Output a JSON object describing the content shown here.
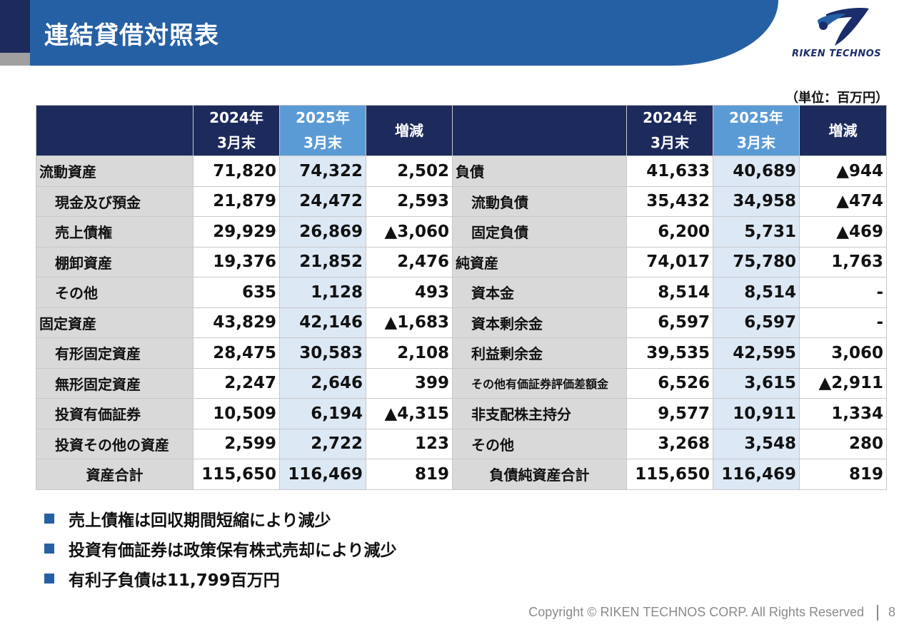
{
  "header": {
    "title": "連結貸借対照表",
    "logo_text": "RIKEN TECHNOS"
  },
  "unit_label": "（単位：百万円）",
  "table": {
    "headers": {
      "left_prev": [
        "2024年",
        "3月末"
      ],
      "left_cur": [
        "2025年",
        "3月末"
      ],
      "left_change": "増減",
      "right_prev": [
        "2024年",
        "3月末"
      ],
      "right_cur": [
        "2025年",
        "3月末"
      ],
      "right_change": "増減"
    },
    "rows": [
      {
        "l_label": "流動資産",
        "l_prev": "71,820",
        "l_cur": "74,322",
        "l_chg": "2,502",
        "r_label": "負債",
        "r_prev": "41,633",
        "r_cur": "40,689",
        "r_chg": "▲944"
      },
      {
        "l_label": "現金及び預金",
        "l_prev": "21,879",
        "l_cur": "24,472",
        "l_chg": "2,593",
        "r_label": "流動負債",
        "r_prev": "35,432",
        "r_cur": "34,958",
        "r_chg": "▲474"
      },
      {
        "l_label": "売上債権",
        "l_prev": "29,929",
        "l_cur": "26,869",
        "l_chg": "▲3,060",
        "r_label": "固定負債",
        "r_prev": "6,200",
        "r_cur": "5,731",
        "r_chg": "▲469"
      },
      {
        "l_label": "棚卸資産",
        "l_prev": "19,376",
        "l_cur": "21,852",
        "l_chg": "2,476",
        "r_label": "純資産",
        "r_prev": "74,017",
        "r_cur": "75,780",
        "r_chg": "1,763"
      },
      {
        "l_label": "その他",
        "l_prev": "635",
        "l_cur": "1,128",
        "l_chg": "493",
        "r_label": "資本金",
        "r_prev": "8,514",
        "r_cur": "8,514",
        "r_chg": "-"
      },
      {
        "l_label": "固定資産",
        "l_prev": "43,829",
        "l_cur": "42,146",
        "l_chg": "▲1,683",
        "r_label": "資本剰余金",
        "r_prev": "6,597",
        "r_cur": "6,597",
        "r_chg": "-"
      },
      {
        "l_label": "有形固定資産",
        "l_prev": "28,475",
        "l_cur": "30,583",
        "l_chg": "2,108",
        "r_label": "利益剰余金",
        "r_prev": "39,535",
        "r_cur": "42,595",
        "r_chg": "3,060"
      },
      {
        "l_label": "無形固定資産",
        "l_prev": "2,247",
        "l_cur": "2,646",
        "l_chg": "399",
        "r_label": "その他有価証券評価差額金",
        "r_prev": "6,526",
        "r_cur": "3,615",
        "r_chg": "▲2,911"
      },
      {
        "l_label": "投資有価証券",
        "l_prev": "10,509",
        "l_cur": "6,194",
        "l_chg": "▲4,315",
        "r_label": "非支配株主持分",
        "r_prev": "9,577",
        "r_cur": "10,911",
        "r_chg": "1,334"
      },
      {
        "l_label": "投資その他の資産",
        "l_prev": "2,599",
        "l_cur": "2,722",
        "l_chg": "123",
        "r_label": "その他",
        "r_prev": "3,268",
        "r_cur": "3,548",
        "r_chg": "280"
      },
      {
        "l_label": "資産合計",
        "l_prev": "115,650",
        "l_cur": "116,469",
        "l_chg": "819",
        "r_label": "負債純資産合計",
        "r_prev": "115,650",
        "r_cur": "116,469",
        "r_chg": "819"
      }
    ]
  },
  "bullets": [
    "売上債権は回収期間短縮により減少",
    "投資有価証券は政策保有株式売却により減少",
    "有利子負債は11,799百万円"
  ],
  "footer": {
    "copyright": "Copyright © RIKEN TECHNOS CORP. All Rights Reserved",
    "page": "8"
  },
  "colors": {
    "navy": "#1d2a5c",
    "blue": "#2660a4",
    "light_blue": "#5b9bd5",
    "pale_blue": "#dde8f5",
    "label_gray": "#d9d9d9"
  }
}
